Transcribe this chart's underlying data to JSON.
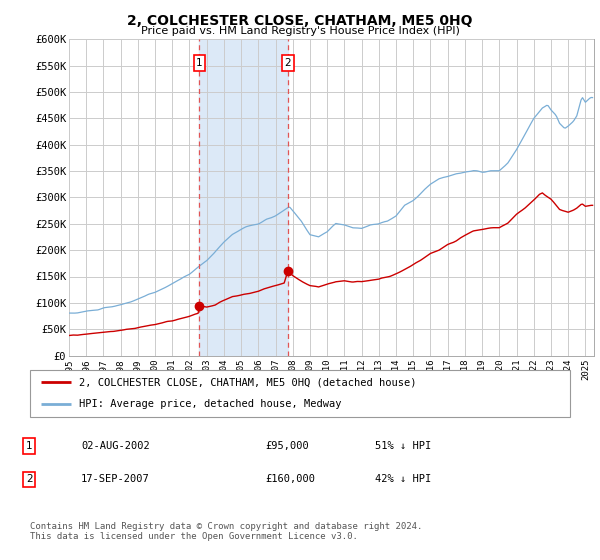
{
  "title": "2, COLCHESTER CLOSE, CHATHAM, ME5 0HQ",
  "subtitle": "Price paid vs. HM Land Registry's House Price Index (HPI)",
  "ylim": [
    0,
    600000
  ],
  "yticks": [
    0,
    50000,
    100000,
    150000,
    200000,
    250000,
    300000,
    350000,
    400000,
    450000,
    500000,
    550000,
    600000
  ],
  "ytick_labels": [
    "£0",
    "£50K",
    "£100K",
    "£150K",
    "£200K",
    "£250K",
    "£300K",
    "£350K",
    "£400K",
    "£450K",
    "£500K",
    "£550K",
    "£600K"
  ],
  "xlim_start": 1995.0,
  "xlim_end": 2025.5,
  "transaction1_x": 2002.58,
  "transaction1_y": 95000,
  "transaction1_label": "02-AUG-2002",
  "transaction1_price": "£95,000",
  "transaction1_hpi": "51% ↓ HPI",
  "transaction2_x": 2007.71,
  "transaction2_y": 160000,
  "transaction2_label": "17-SEP-2007",
  "transaction2_price": "£160,000",
  "transaction2_hpi": "42% ↓ HPI",
  "shade_color": "#dce9f7",
  "red_line_color": "#cc0000",
  "blue_line_color": "#7aaed6",
  "legend_label_red": "2, COLCHESTER CLOSE, CHATHAM, ME5 0HQ (detached house)",
  "legend_label_blue": "HPI: Average price, detached house, Medway",
  "footer": "Contains HM Land Registry data © Crown copyright and database right 2024.\nThis data is licensed under the Open Government Licence v3.0.",
  "background_color": "#ffffff",
  "grid_color": "#cccccc"
}
